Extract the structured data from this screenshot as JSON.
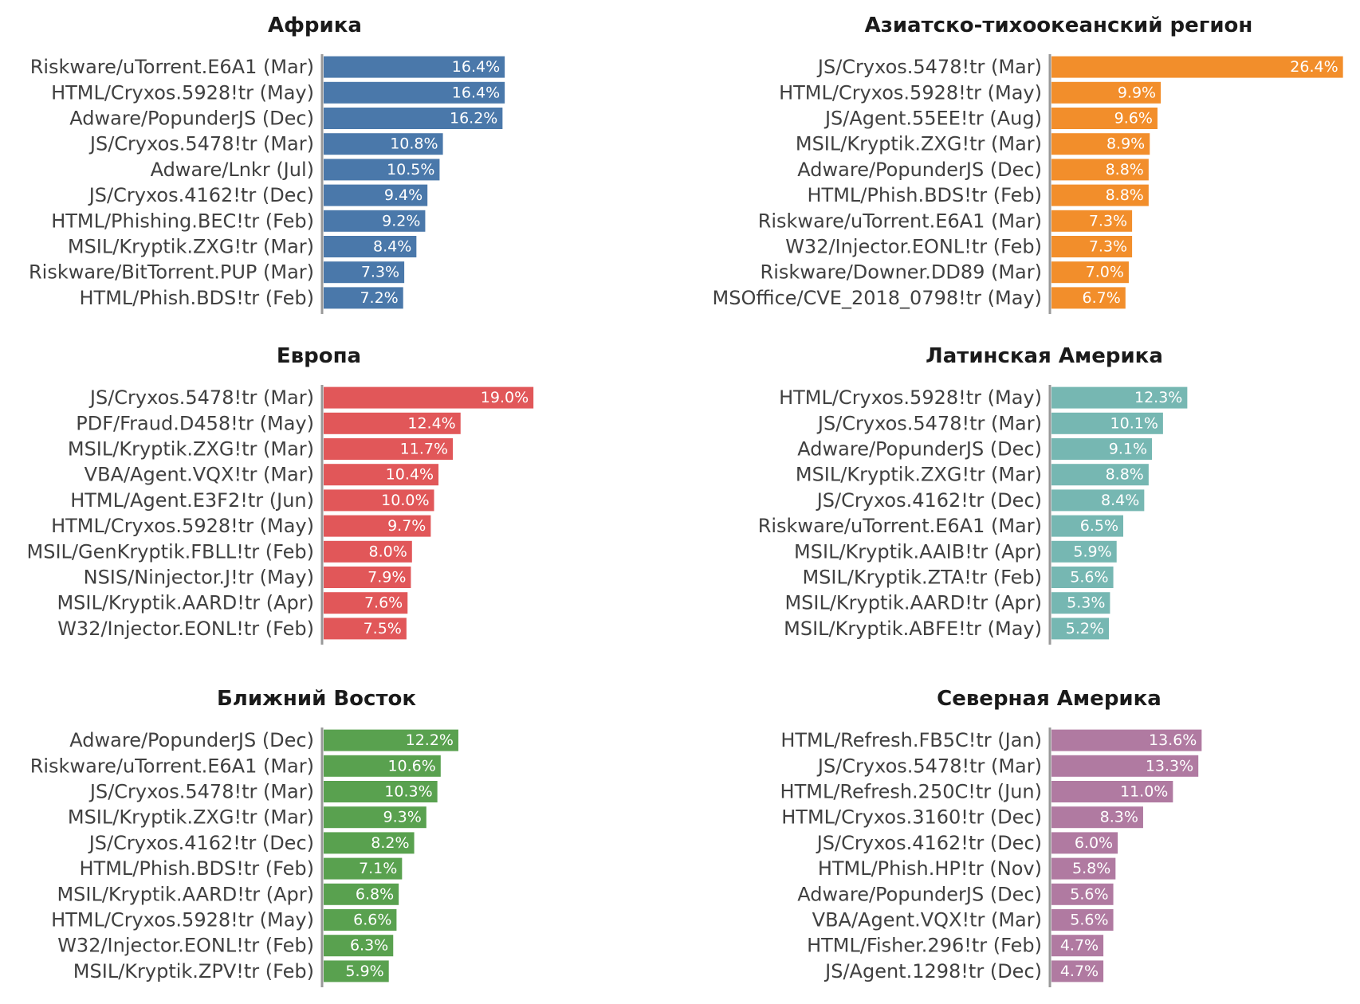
{
  "chart_data": [
    {
      "type": "bar",
      "orientation": "horizontal",
      "title": "Африка",
      "color": "#4A78AA",
      "categories": [
        "Riskware/uTorrent.E6A1 (Mar)",
        "HTML/Cryxos.5928!tr (May)",
        "Adware/PopunderJS (Dec)",
        "JS/Cryxos.5478!tr (Mar)",
        "Adware/Lnkr (Jul)",
        "JS/Cryxos.4162!tr (Dec)",
        "HTML/Phishing.BEC!tr (Feb)",
        "MSIL/Kryptik.ZXG!tr (Mar)",
        "Riskware/BitTorrent.PUP (Mar)",
        "HTML/Phish.BDS!tr (Feb)"
      ],
      "values": [
        16.4,
        16.4,
        16.2,
        10.8,
        10.5,
        9.4,
        9.2,
        8.4,
        7.3,
        7.2
      ],
      "value_labels": [
        "16.4%",
        "16.4%",
        "16.2%",
        "10.8%",
        "10.5%",
        "9.4%",
        "9.2%",
        "8.4%",
        "7.3%",
        "7.2%"
      ]
    },
    {
      "type": "bar",
      "orientation": "horizontal",
      "title": "Азиатско-тихоокеанский регион",
      "color": "#F28E2B",
      "categories": [
        "JS/Cryxos.5478!tr (Mar)",
        "HTML/Cryxos.5928!tr (May)",
        "JS/Agent.55EE!tr (Aug)",
        "MSIL/Kryptik.ZXG!tr (Mar)",
        "Adware/PopunderJS (Dec)",
        "HTML/Phish.BDS!tr (Feb)",
        "Riskware/uTorrent.E6A1 (Mar)",
        "W32/Injector.EONL!tr (Feb)",
        "Riskware/Downer.DD89 (Mar)",
        "MSOffice/CVE_2018_0798!tr (May)"
      ],
      "values": [
        26.4,
        9.9,
        9.6,
        8.9,
        8.8,
        8.8,
        7.3,
        7.3,
        7.0,
        6.7
      ],
      "value_labels": [
        "26.4%",
        "9.9%",
        "9.6%",
        "8.9%",
        "8.8%",
        "8.8%",
        "7.3%",
        "7.3%",
        "7.0%",
        "6.7%"
      ]
    },
    {
      "type": "bar",
      "orientation": "horizontal",
      "title": "Европа",
      "color": "#E15759",
      "categories": [
        "JS/Cryxos.5478!tr (Mar)",
        "PDF/Fraud.D458!tr (May)",
        "MSIL/Kryptik.ZXG!tr (Mar)",
        "VBA/Agent.VQX!tr (Mar)",
        "HTML/Agent.E3F2!tr (Jun)",
        "HTML/Cryxos.5928!tr (May)",
        "MSIL/GenKryptik.FBLL!tr (Feb)",
        "NSIS/Ninjector.J!tr (May)",
        "MSIL/Kryptik.AARD!tr (Apr)",
        "W32/Injector.EONL!tr (Feb)"
      ],
      "values": [
        19.0,
        12.4,
        11.7,
        10.4,
        10.0,
        9.7,
        8.0,
        7.9,
        7.6,
        7.5
      ],
      "value_labels": [
        "19.0%",
        "12.4%",
        "11.7%",
        "10.4%",
        "10.0%",
        "9.7%",
        "8.0%",
        "7.9%",
        "7.6%",
        "7.5%"
      ]
    },
    {
      "type": "bar",
      "orientation": "horizontal",
      "title": "Латинская Америка",
      "color": "#76B7B2",
      "categories": [
        "HTML/Cryxos.5928!tr (May)",
        "JS/Cryxos.5478!tr (Mar)",
        "Adware/PopunderJS (Dec)",
        "MSIL/Kryptik.ZXG!tr (Mar)",
        "JS/Cryxos.4162!tr (Dec)",
        "Riskware/uTorrent.E6A1 (Mar)",
        "MSIL/Kryptik.AAIB!tr (Apr)",
        "MSIL/Kryptik.ZTA!tr (Feb)",
        "MSIL/Kryptik.AARD!tr (Apr)",
        "MSIL/Kryptik.ABFE!tr (May)"
      ],
      "values": [
        12.3,
        10.1,
        9.1,
        8.8,
        8.4,
        6.5,
        5.9,
        5.6,
        5.3,
        5.2
      ],
      "value_labels": [
        "12.3%",
        "10.1%",
        "9.1%",
        "8.8%",
        "8.4%",
        "6.5%",
        "5.9%",
        "5.6%",
        "5.3%",
        "5.2%"
      ]
    },
    {
      "type": "bar",
      "orientation": "horizontal",
      "title": "Ближний Восток",
      "color": "#59A14F",
      "categories": [
        "Adware/PopunderJS (Dec)",
        "Riskware/uTorrent.E6A1 (Mar)",
        "JS/Cryxos.5478!tr (Mar)",
        "MSIL/Kryptik.ZXG!tr (Mar)",
        "JS/Cryxos.4162!tr (Dec)",
        "HTML/Phish.BDS!tr (Feb)",
        "MSIL/Kryptik.AARD!tr (Apr)",
        "HTML/Cryxos.5928!tr (May)",
        "W32/Injector.EONL!tr (Feb)",
        "MSIL/Kryptik.ZPV!tr (Feb)"
      ],
      "values": [
        12.2,
        10.6,
        10.3,
        9.3,
        8.2,
        7.1,
        6.8,
        6.6,
        6.3,
        5.9
      ],
      "value_labels": [
        "12.2%",
        "10.6%",
        "10.3%",
        "9.3%",
        "8.2%",
        "7.1%",
        "6.8%",
        "6.6%",
        "6.3%",
        "5.9%"
      ]
    },
    {
      "type": "bar",
      "orientation": "horizontal",
      "title": "Северная Америка",
      "color": "#B07AA1",
      "categories": [
        "HTML/Refresh.FB5C!tr (Jan)",
        "JS/Cryxos.5478!tr (Mar)",
        "HTML/Refresh.250C!tr (Jun)",
        "HTML/Cryxos.3160!tr (Dec)",
        "JS/Cryxos.4162!tr (Dec)",
        "HTML/Phish.HP!tr (Nov)",
        "Adware/PopunderJS (Dec)",
        "VBA/Agent.VQX!tr (Mar)",
        "HTML/Fisher.296!tr (Feb)",
        "JS/Agent.1298!tr (Dec)"
      ],
      "values": [
        13.6,
        13.3,
        11.0,
        8.3,
        6.0,
        5.8,
        5.6,
        5.6,
        4.7,
        4.7
      ],
      "value_labels": [
        "13.6%",
        "13.3%",
        "11.0%",
        "8.3%",
        "6.0%",
        "5.8%",
        "5.6%",
        "5.6%",
        "4.7%",
        "4.7%"
      ]
    }
  ]
}
